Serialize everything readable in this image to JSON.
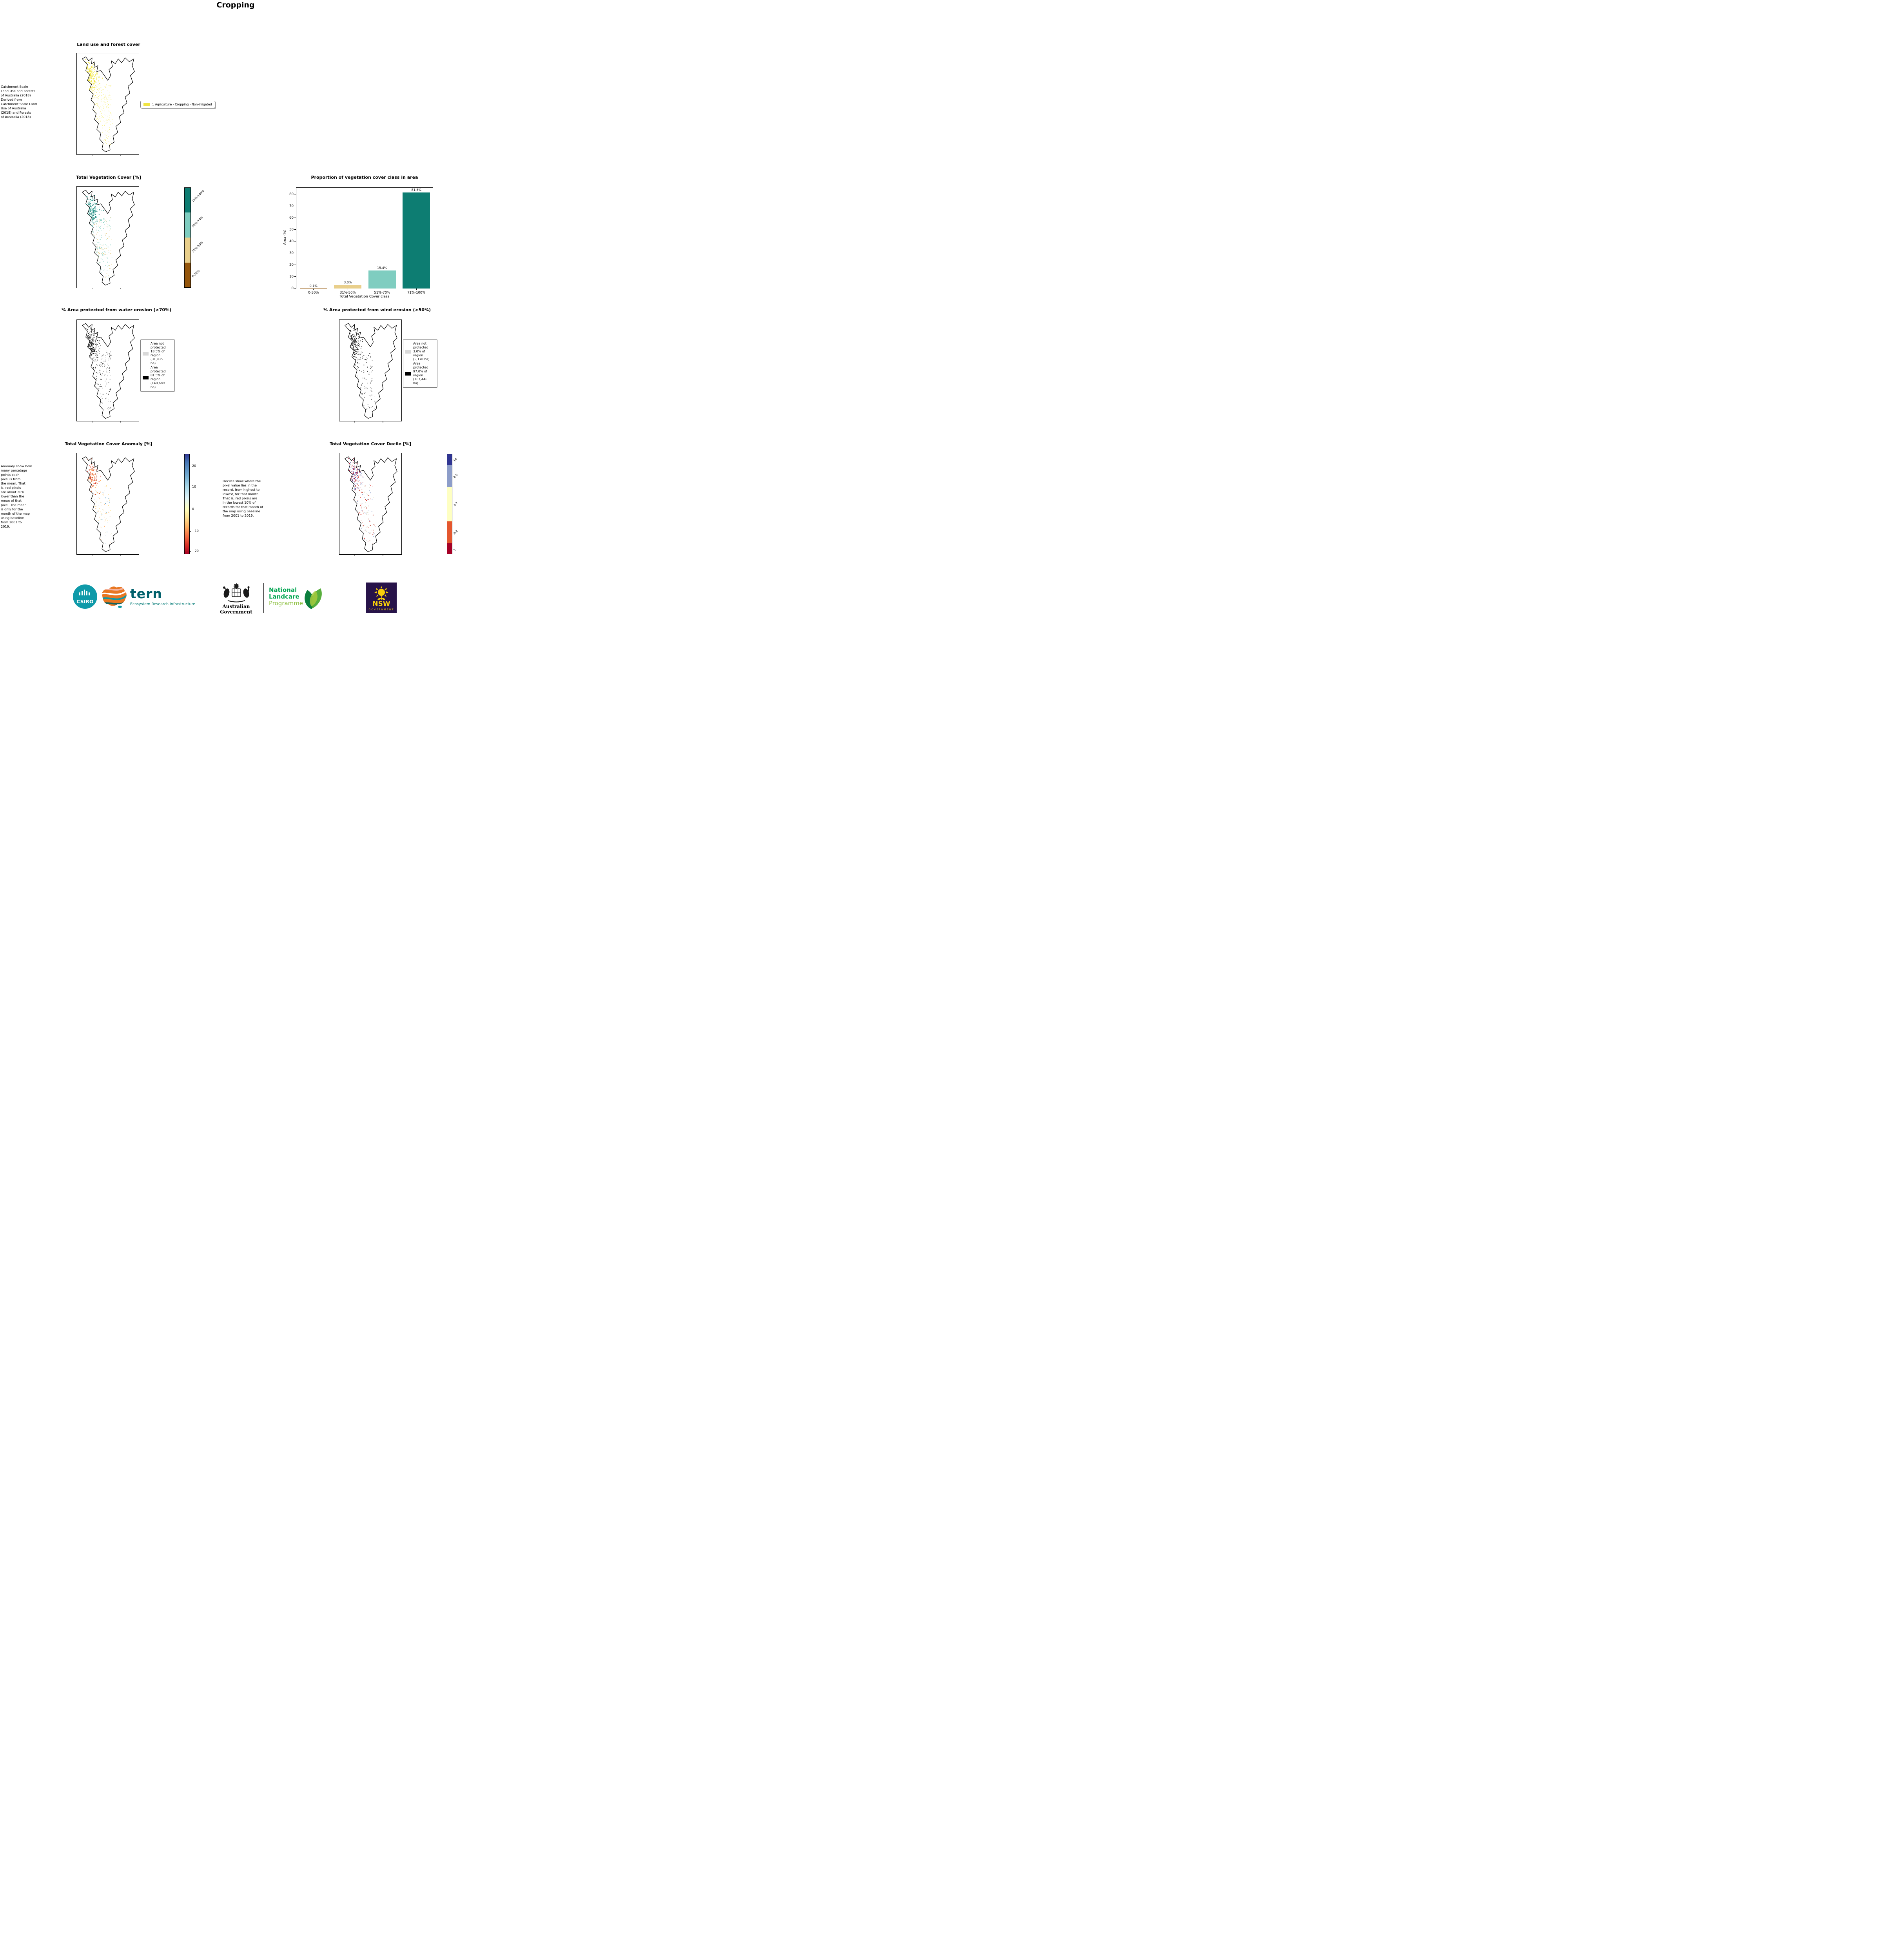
{
  "page": {
    "title": "Cropping"
  },
  "panels": {
    "landuse": {
      "title": "Land use and forest cover",
      "source_note": "Catchment Scale\nLand Use and Forests\nof Australia (2018)\nDerived from\nCatchment Scale Land\nUse of Australia\n(2018) and Forests\nof Australia (2018)",
      "legend_label": "1 Agriculture - Cropping - Non-irrigated",
      "legend_color": "#f0e442"
    },
    "vegcover": {
      "title": "Total Vegetation Cover [%]",
      "colorbar": [
        {
          "label": "71%-100%",
          "color": "#0d7d72"
        },
        {
          "label": "51%-70%",
          "color": "#7fcdc0"
        },
        {
          "label": "31%-50%",
          "color": "#e9cf8b"
        },
        {
          "label": "0-30%",
          "color": "#95560b"
        }
      ]
    },
    "water": {
      "title": "% Area protected from water erosion (>70%)",
      "legend": [
        {
          "color": "#d9d9d9",
          "text": "Area not\nprotected\n18.5% of\nregion\n(31,935\nha)"
        },
        {
          "color": "#000000",
          "text": "Area\nprotected\n81.5% of\nregion\n(140,689\nha)"
        }
      ]
    },
    "wind": {
      "title": "% Area protected from wind erosion (>50%)",
      "legend": [
        {
          "color": "#d9d9d9",
          "text": "Area not\nprotected\n3.0% of\nregion\n(5,178 ha)"
        },
        {
          "color": "#000000",
          "text": "Area\nprotected\n97.0% of\nregion\n(167,446\nha)"
        }
      ]
    },
    "anomaly": {
      "title": "Total Vegetation Cover Anomaly [%]",
      "note": "Anomaly show how\nmany percetage\npoints each\npixel is from\nthe mean. That\nis, red pixels\nare about 20%\nlower than the\nmean of that\npixel. The mean\nis only for the\nmonth of the map\nusing baseline\nfrom 2001 to\n2019.",
      "colorbar_ticks": [
        "20",
        "10",
        "0",
        "−10",
        "−20"
      ]
    },
    "decile": {
      "title": "Total Vegetation Cover Decile [%]",
      "note": "Deciles show where the\npixel value lies in the\nrecord, from highest to\nlowest, for that month.\nThat is, red pixels are\nin the lowest 10% of\nrecords for that month of\nthe map using baseline\nfrom 2001 to 2019.",
      "colorbar": [
        {
          "label": "10",
          "color": "#303592"
        },
        {
          "label": "8-9",
          "color": "#8d9dc9"
        },
        {
          "label": "4-7",
          "color": "#feffc2"
        },
        {
          "label": "2-3",
          "color": "#e4572e"
        },
        {
          "label": "1",
          "color": "#a50026"
        }
      ]
    }
  },
  "chart_data": {
    "type": "bar",
    "title": "Proportion of vegetation cover class in area",
    "categories": [
      "0-30%",
      "31%-50%",
      "51%-70%",
      "71%-100%"
    ],
    "values": [
      0.1,
      3.0,
      15.4,
      81.5
    ],
    "bar_labels": [
      "0.1%",
      "3.0%",
      "15.4%",
      "81.5%"
    ],
    "colors": [
      "#95560b",
      "#e9cf8b",
      "#7fcdc0",
      "#0d7d72"
    ],
    "xlabel": "Total Vegetation Cover class",
    "ylabel": "Area (%)",
    "ylim": [
      0,
      85.6
    ],
    "yticks": [
      0,
      10,
      20,
      30,
      40,
      50,
      60,
      70,
      80
    ],
    "grid": false,
    "legend_position": "none"
  },
  "footer": {
    "csiro": "CSIRO",
    "tern": "tern",
    "tern_tagline": "Ecosystem Research Infrastructure",
    "aus_gov": "Australian Government",
    "nlp_line1": "National",
    "nlp_line2": "Landcare",
    "nlp_line3": "Programme",
    "nsw": "NSW",
    "nsw_sub": "GOVERNMENT",
    "colors": {
      "csiro_teal": "#0f9aa9",
      "tern_dark": "#00606b",
      "tern_teal": "#0b7f7b",
      "nlp_green": "#00a551",
      "nlp_light_green": "#8cbf3f",
      "nsw_purple": "#271349",
      "nsw_yellow": "#f7ce0a"
    }
  }
}
